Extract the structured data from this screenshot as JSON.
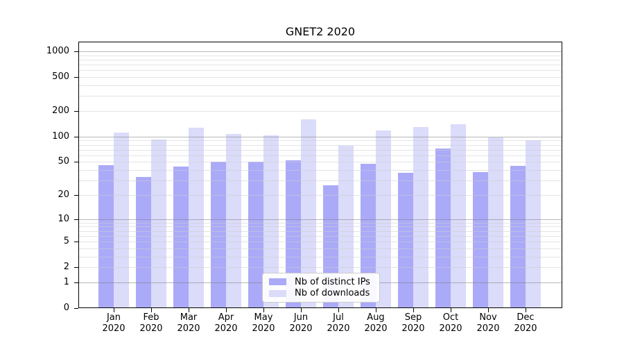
{
  "title": "GNET2 2020",
  "colors": {
    "ips": "#aaaaf8",
    "downloads": "#dbdbfa",
    "grid_major": "rgba(125,125,125,0.55)",
    "grid_minor": "rgba(205,205,205,0.55)",
    "axis": "#000000",
    "legend_border": "#cccccc",
    "background": "#ffffff"
  },
  "legend": {
    "items": [
      {
        "label": "Nb of distinct IPs",
        "series": "ips"
      },
      {
        "label": "Nb of downloads",
        "series": "downloads"
      }
    ]
  },
  "y_axis": {
    "tick_labels": [
      "0",
      "1",
      "2",
      "5",
      "10",
      "20",
      "50",
      "100",
      "200",
      "500",
      "1000"
    ]
  },
  "x_axis": {
    "months": [
      "Jan",
      "Feb",
      "Mar",
      "Apr",
      "May",
      "Jun",
      "Jul",
      "Aug",
      "Sep",
      "Oct",
      "Nov",
      "Dec"
    ],
    "year": "2020"
  },
  "chart_data": {
    "type": "bar",
    "title": "GNET2 2020",
    "categories": [
      "Jan 2020",
      "Feb 2020",
      "Mar 2020",
      "Apr 2020",
      "May 2020",
      "Jun 2020",
      "Jul 2020",
      "Aug 2020",
      "Sep 2020",
      "Oct 2020",
      "Nov 2020",
      "Dec 2020"
    ],
    "series": [
      {
        "name": "Nb of distinct IPs",
        "key": "ips",
        "values": [
          46,
          33,
          44,
          50,
          50,
          52,
          26,
          48,
          37,
          72,
          38,
          45
        ]
      },
      {
        "name": "Nb of downloads",
        "key": "downloads",
        "values": [
          112,
          92,
          128,
          107,
          104,
          160,
          78,
          118,
          130,
          140,
          98,
          91
        ]
      }
    ],
    "xlabel": "",
    "ylabel": "",
    "yscale": "log10(1+x)",
    "yticks": [
      0,
      1,
      2,
      5,
      10,
      20,
      50,
      100,
      200,
      500,
      1000
    ],
    "ylim": [
      0,
      1300
    ],
    "grid": "major (decades) dark gray + minor light gray, drawn over bars",
    "legend_position": "lower center inside plot"
  }
}
